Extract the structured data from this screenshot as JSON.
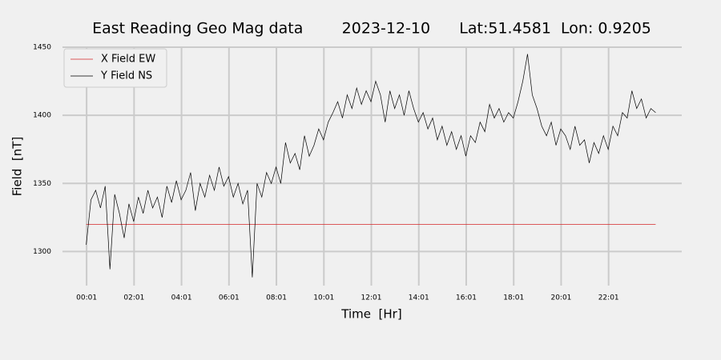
{
  "chart_data": {
    "type": "line",
    "title": "East Reading Geo Mag data        2023-12-10      Lat:51.4581  Lon: 0.9205",
    "xlabel": "Time  [Hr]",
    "ylabel": "Field  [nT]",
    "xlim": [
      -1.0,
      25.1
    ],
    "ylim": [
      1275,
      1450
    ],
    "xticks": [
      {
        "value": 0.0167,
        "label": "00:01"
      },
      {
        "value": 2.0167,
        "label": "02:01"
      },
      {
        "value": 4.0167,
        "label": "04:01"
      },
      {
        "value": 6.0167,
        "label": "06:01"
      },
      {
        "value": 8.0167,
        "label": "08:01"
      },
      {
        "value": 10.0167,
        "label": "10:01"
      },
      {
        "value": 12.0167,
        "label": "12:01"
      },
      {
        "value": 14.0167,
        "label": "14:01"
      },
      {
        "value": 16.0167,
        "label": "16:01"
      },
      {
        "value": 18.0167,
        "label": "18:01"
      },
      {
        "value": 20.0167,
        "label": "20:01"
      },
      {
        "value": 22.0167,
        "label": "22:01"
      }
    ],
    "yticks": [
      1300,
      1350,
      1400,
      1450
    ],
    "grid": true,
    "legend": "upper left",
    "series": [
      {
        "name": "X Field EW",
        "color": "#d62728",
        "x": [
          0,
          24
        ],
        "values": [
          1320,
          1320
        ]
      },
      {
        "name": "Y Field NS",
        "color": "#000000",
        "x": [
          0,
          0.2,
          0.4,
          0.6,
          0.8,
          1.0,
          1.2,
          1.4,
          1.6,
          1.8,
          2.0,
          2.2,
          2.4,
          2.6,
          2.8,
          3.0,
          3.2,
          3.4,
          3.6,
          3.8,
          4.0,
          4.2,
          4.4,
          4.6,
          4.8,
          5.0,
          5.2,
          5.4,
          5.6,
          5.8,
          6.0,
          6.2,
          6.4,
          6.6,
          6.8,
          7.0,
          7.2,
          7.4,
          7.6,
          7.8,
          8.0,
          8.2,
          8.4,
          8.6,
          8.8,
          9.0,
          9.2,
          9.4,
          9.6,
          9.8,
          10.0,
          10.2,
          10.4,
          10.6,
          10.8,
          11.0,
          11.2,
          11.4,
          11.6,
          11.8,
          12.0,
          12.2,
          12.4,
          12.6,
          12.8,
          13.0,
          13.2,
          13.4,
          13.6,
          13.8,
          14.0,
          14.2,
          14.4,
          14.6,
          14.8,
          15.0,
          15.2,
          15.4,
          15.6,
          15.8,
          16.0,
          16.2,
          16.4,
          16.6,
          16.8,
          17.0,
          17.2,
          17.4,
          17.6,
          17.8,
          18.0,
          18.2,
          18.4,
          18.6,
          18.8,
          19.0,
          19.2,
          19.4,
          19.6,
          19.8,
          20.0,
          20.2,
          20.4,
          20.6,
          20.8,
          21.0,
          21.2,
          21.4,
          21.6,
          21.8,
          22.0,
          22.2,
          22.4,
          22.6,
          22.8,
          23.0,
          23.2,
          23.4,
          23.6,
          23.8,
          24.0
        ],
        "values": [
          1305,
          1338,
          1345,
          1332,
          1348,
          1287,
          1342,
          1328,
          1310,
          1335,
          1322,
          1340,
          1328,
          1345,
          1332,
          1340,
          1325,
          1348,
          1336,
          1352,
          1338,
          1345,
          1358,
          1330,
          1350,
          1340,
          1356,
          1345,
          1362,
          1348,
          1355,
          1340,
          1350,
          1335,
          1345,
          1281,
          1350,
          1340,
          1358,
          1350,
          1362,
          1350,
          1380,
          1365,
          1372,
          1360,
          1385,
          1370,
          1378,
          1390,
          1382,
          1395,
          1402,
          1410,
          1398,
          1415,
          1405,
          1420,
          1408,
          1418,
          1410,
          1425,
          1415,
          1395,
          1418,
          1405,
          1415,
          1400,
          1418,
          1405,
          1395,
          1402,
          1390,
          1398,
          1382,
          1392,
          1378,
          1388,
          1375,
          1385,
          1370,
          1385,
          1380,
          1395,
          1388,
          1408,
          1398,
          1405,
          1395,
          1402,
          1398,
          1410,
          1425,
          1445,
          1415,
          1405,
          1392,
          1385,
          1395,
          1378,
          1390,
          1385,
          1375,
          1392,
          1378,
          1382,
          1365,
          1380,
          1372,
          1385,
          1375,
          1392,
          1385,
          1402,
          1398,
          1418,
          1405,
          1412,
          1398,
          1405,
          1402
        ]
      }
    ]
  }
}
